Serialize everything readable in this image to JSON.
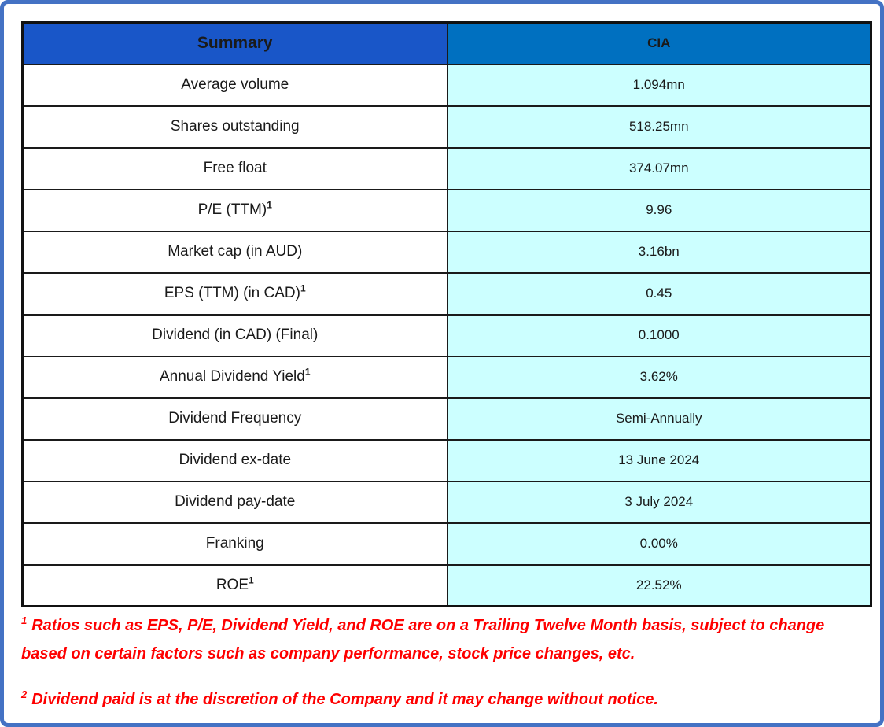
{
  "table": {
    "header": {
      "label_col": "Summary",
      "value_col": "CIA"
    },
    "rows": [
      {
        "label": "Average volume",
        "sup": "",
        "value": "1.094mn"
      },
      {
        "label": "Shares outstanding",
        "sup": "",
        "value": "518.25mn"
      },
      {
        "label": "Free float",
        "sup": "",
        "value": "374.07mn"
      },
      {
        "label": "P/E (TTM)",
        "sup": "1",
        "value": "9.96"
      },
      {
        "label": "Market cap (in AUD)",
        "sup": "",
        "value": "3.16bn"
      },
      {
        "label": "EPS (TTM) (in CAD)",
        "sup": "1",
        "value": "0.45"
      },
      {
        "label": "Dividend (in CAD) (Final)",
        "sup": "",
        "value": "0.1000"
      },
      {
        "label": "Annual Dividend Yield",
        "sup": "1",
        "value": "3.62%"
      },
      {
        "label": "Dividend Frequency",
        "sup": "",
        "value": "Semi-Annually"
      },
      {
        "label": "Dividend ex-date",
        "sup": "",
        "value": "13 June 2024"
      },
      {
        "label": "Dividend pay-date",
        "sup": "",
        "value": "3 July 2024"
      },
      {
        "label": "Franking",
        "sup": "",
        "value": "0.00%"
      },
      {
        "label": "ROE",
        "sup": "1",
        "value": "22.52%"
      }
    ]
  },
  "footnotes": [
    {
      "sup": "1",
      "text": "Ratios such as EPS, P/E, Dividend Yield, and ROE are on a Trailing Twelve Month basis, subject to change based on certain factors such as company performance, stock price changes, etc."
    },
    {
      "sup": "2",
      "text": "Dividend paid is at the discretion of the Company and it may change without notice."
    }
  ],
  "colors": {
    "outer_border": "#4472C4",
    "header_label_bg": "#1956C8",
    "header_value_bg": "#0070C0",
    "header_text": "#FFFFFF",
    "label_cell_bg": "#FFFFFF",
    "value_cell_bg": "#CCFFFF",
    "table_border": "#111111",
    "footnote_text": "#FE0000"
  }
}
